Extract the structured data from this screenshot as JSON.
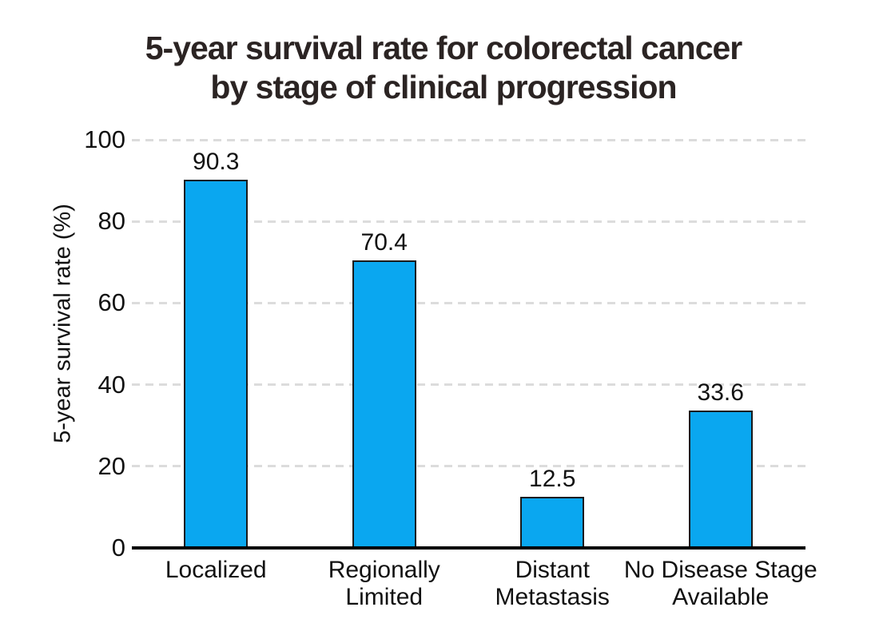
{
  "page": {
    "background": "#ffffff"
  },
  "chart_data": {
    "type": "bar",
    "title": "5-year survival rate for colorectal cancer by stage of clinical progression",
    "title_lines": [
      "5-year survival rate for colorectal cancer",
      "by stage of clinical progression"
    ],
    "xlabel": "",
    "ylabel": "5-year survival rate (%)",
    "categories": [
      "Localized",
      "Regionally\nLimited",
      "Distant\nMetastasis",
      "No Disease Stage\nAvailable"
    ],
    "values": [
      90.3,
      70.4,
      12.5,
      33.6
    ],
    "value_labels": [
      "90.3",
      "70.4",
      "12.5",
      "33.6"
    ],
    "ylim": [
      0,
      100
    ],
    "yticks": [
      0,
      20,
      40,
      60,
      80,
      100
    ],
    "grid": "horizontal dashed, behind bars, no gridline at 0",
    "legend_position": "none",
    "colors": {
      "bar_fill": "#0aa7f0",
      "bar_stroke": "#1a1a1a",
      "grid_line": "#dcdcdc",
      "axis_line": "#000000",
      "title_text": "#2b2423",
      "label_text": "#111111"
    }
  }
}
